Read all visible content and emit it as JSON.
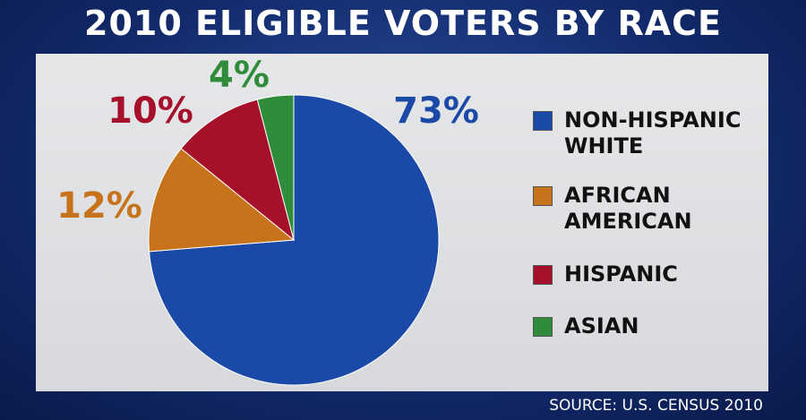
{
  "chart_data": {
    "type": "pie",
    "title": "2010 ELIGIBLE VOTERS BY RACE",
    "categories": [
      "NON-HISPANIC WHITE",
      "AFRICAN AMERICAN",
      "HISPANIC",
      "ASIAN"
    ],
    "values": [
      73,
      12,
      10,
      4
    ],
    "value_labels": [
      "73%",
      "12%",
      "10%",
      "4%"
    ],
    "colors": [
      "#1b49a8",
      "#c7731b",
      "#a6102b",
      "#2f8c3b"
    ],
    "source": "SOURCE: U.S. CENSUS 2010"
  }
}
